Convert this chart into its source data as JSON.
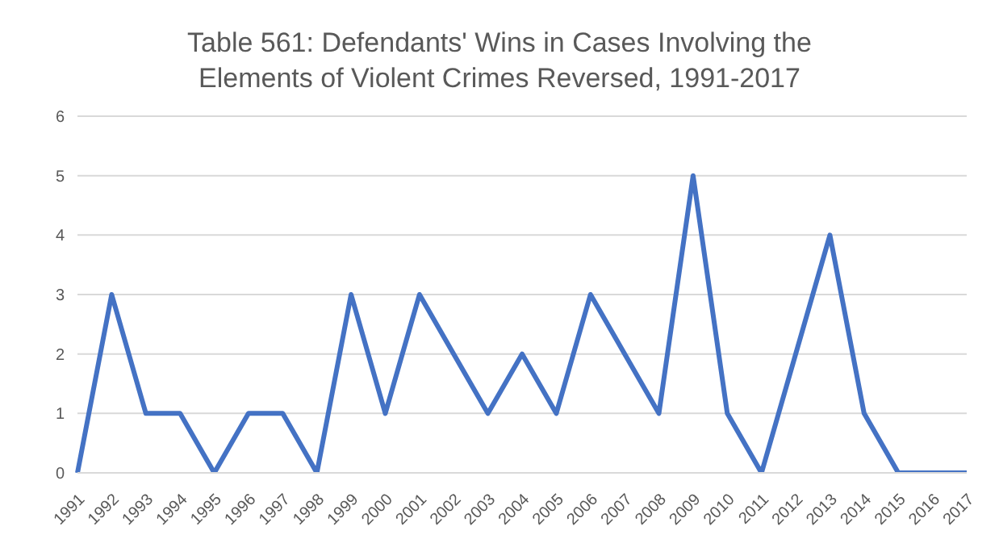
{
  "chart_data": {
    "type": "line",
    "title": "Table 561: Defendants' Wins in Cases Involving the Elements of Violent Crimes Reversed, 1991-2017",
    "categories": [
      "1991",
      "1992",
      "1993",
      "1994",
      "1995",
      "1996",
      "1997",
      "1998",
      "1999",
      "2000",
      "2001",
      "2002",
      "2003",
      "2004",
      "2005",
      "2006",
      "2007",
      "2008",
      "2009",
      "2010",
      "2011",
      "2012",
      "2013",
      "2014",
      "2015",
      "2016",
      "2017"
    ],
    "values": [
      0,
      3,
      1,
      1,
      0,
      1,
      1,
      0,
      3,
      1,
      3,
      2,
      1,
      2,
      1,
      3,
      2,
      1,
      5,
      1,
      0,
      2,
      4,
      1,
      0,
      0,
      0
    ],
    "color": "#4472c4",
    "ylim": [
      0,
      6
    ],
    "yticks": [
      0,
      1,
      2,
      3,
      4,
      5,
      6
    ],
    "grid": "y",
    "marker": "none",
    "line_style": "solid",
    "legend": false
  }
}
